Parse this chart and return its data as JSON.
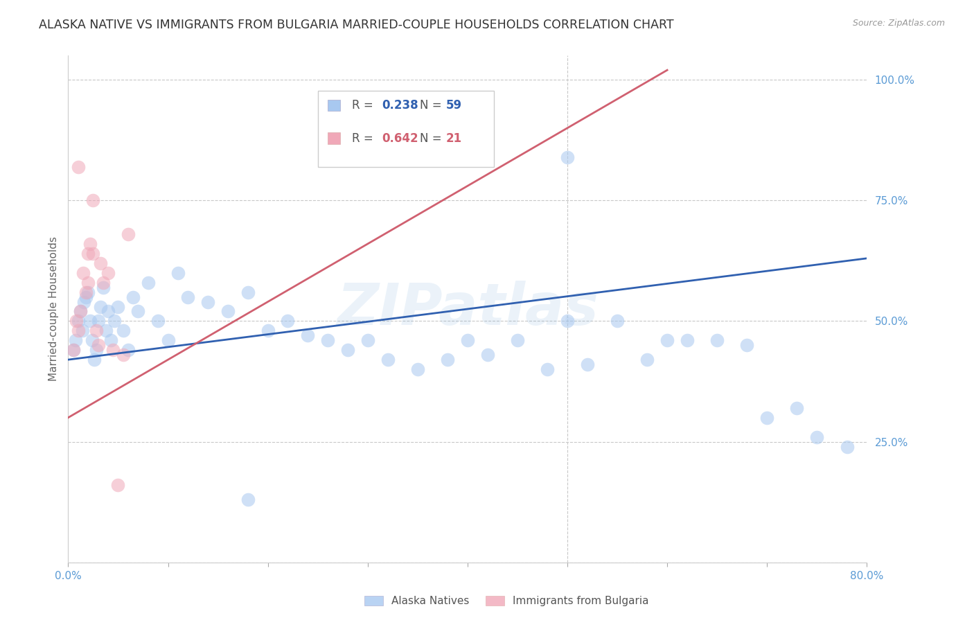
{
  "title": "ALASKA NATIVE VS IMMIGRANTS FROM BULGARIA MARRIED-COUPLE HOUSEHOLDS CORRELATION CHART",
  "source": "Source: ZipAtlas.com",
  "ylabel": "Married-couple Households",
  "watermark": "ZIPatlas",
  "background_color": "#ffffff",
  "title_color": "#333333",
  "axis_color": "#5b9bd5",
  "grid_color": "#c8c8c8",
  "blue_color": "#a8c8f0",
  "pink_color": "#f0a8b8",
  "blue_line_color": "#3060b0",
  "pink_line_color": "#d06070",
  "legend_R_blue": "0.238",
  "legend_N_blue": "59",
  "legend_R_pink": "0.642",
  "legend_N_pink": "21",
  "xlim": [
    0.0,
    0.8
  ],
  "ylim": [
    0.0,
    1.05
  ],
  "yticks": [
    0.0,
    0.25,
    0.5,
    0.75,
    1.0
  ],
  "ytick_labels": [
    "",
    "25.0%",
    "50.0%",
    "75.0%",
    "100.0%"
  ],
  "xticks": [
    0.0,
    0.1,
    0.2,
    0.3,
    0.4,
    0.5,
    0.6,
    0.7,
    0.8
  ],
  "xtick_labels": [
    "0.0%",
    "",
    "",
    "",
    "",
    "",
    "",
    "",
    "80.0%"
  ],
  "blue_scatter_x": [
    0.005,
    0.007,
    0.01,
    0.012,
    0.014,
    0.016,
    0.018,
    0.02,
    0.022,
    0.024,
    0.026,
    0.028,
    0.03,
    0.032,
    0.035,
    0.038,
    0.04,
    0.043,
    0.046,
    0.05,
    0.055,
    0.06,
    0.065,
    0.07,
    0.08,
    0.09,
    0.1,
    0.11,
    0.12,
    0.14,
    0.16,
    0.18,
    0.2,
    0.22,
    0.24,
    0.26,
    0.28,
    0.3,
    0.32,
    0.35,
    0.38,
    0.4,
    0.42,
    0.45,
    0.48,
    0.5,
    0.52,
    0.55,
    0.58,
    0.6,
    0.62,
    0.65,
    0.68,
    0.7,
    0.73,
    0.75,
    0.78,
    0.5,
    0.18
  ],
  "blue_scatter_y": [
    0.44,
    0.46,
    0.5,
    0.52,
    0.48,
    0.54,
    0.55,
    0.56,
    0.5,
    0.46,
    0.42,
    0.44,
    0.5,
    0.53,
    0.57,
    0.48,
    0.52,
    0.46,
    0.5,
    0.53,
    0.48,
    0.44,
    0.55,
    0.52,
    0.58,
    0.5,
    0.46,
    0.6,
    0.55,
    0.54,
    0.52,
    0.56,
    0.48,
    0.5,
    0.47,
    0.46,
    0.44,
    0.46,
    0.42,
    0.4,
    0.42,
    0.46,
    0.43,
    0.46,
    0.4,
    0.5,
    0.41,
    0.5,
    0.42,
    0.46,
    0.46,
    0.46,
    0.45,
    0.3,
    0.32,
    0.26,
    0.24,
    0.84,
    0.13
  ],
  "pink_scatter_x": [
    0.005,
    0.008,
    0.01,
    0.012,
    0.015,
    0.018,
    0.02,
    0.022,
    0.025,
    0.028,
    0.03,
    0.032,
    0.035,
    0.04,
    0.045,
    0.05,
    0.055,
    0.06,
    0.02,
    0.01,
    0.025
  ],
  "pink_scatter_y": [
    0.44,
    0.5,
    0.48,
    0.52,
    0.6,
    0.56,
    0.64,
    0.66,
    0.64,
    0.48,
    0.45,
    0.62,
    0.58,
    0.6,
    0.44,
    0.16,
    0.43,
    0.68,
    0.58,
    0.82,
    0.75
  ],
  "blue_line_x0": 0.0,
  "blue_line_x1": 0.8,
  "blue_line_y0": 0.42,
  "blue_line_y1": 0.63,
  "pink_line_x0": 0.0,
  "pink_line_x1": 0.6,
  "pink_line_y0": 0.3,
  "pink_line_y1": 1.02,
  "marker_size": 200,
  "marker_alpha": 0.55,
  "title_fontsize": 12.5,
  "label_fontsize": 11,
  "tick_fontsize": 11
}
